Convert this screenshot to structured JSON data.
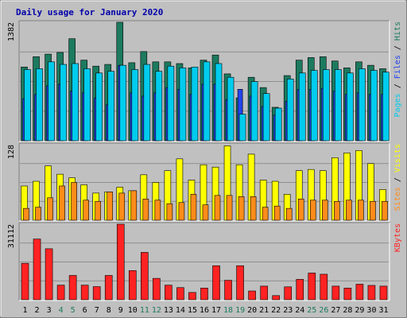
{
  "chart_data": {
    "type": "bar",
    "title": "Daily usage for January 2020",
    "categories": [
      "1",
      "2",
      "3",
      "4",
      "5",
      "6",
      "7",
      "8",
      "9",
      "10",
      "11",
      "12",
      "13",
      "14",
      "15",
      "16",
      "17",
      "18",
      "19",
      "20",
      "21",
      "22",
      "23",
      "24",
      "25",
      "26",
      "27",
      "28",
      "29",
      "30",
      "31"
    ],
    "weekend_days": [
      "4",
      "5",
      "11",
      "12",
      "18",
      "19",
      "25",
      "26"
    ],
    "panels": [
      {
        "max_label": "1382",
        "ylim": [
          0,
          1382
        ],
        "right_label": [
          "Pages",
          "Files",
          "Hits"
        ],
        "series": [
          {
            "name": "Hits",
            "color": "#1c7a5e",
            "values": [
              860,
              980,
              1010,
              1030,
              1190,
              940,
              870,
              890,
              1382,
              910,
              1040,
              920,
              920,
              900,
              850,
              940,
              1000,
              780,
              500,
              740,
              620,
              390,
              760,
              940,
              970,
              980,
              930,
              850,
              920,
              880,
              840
            ]
          },
          {
            "name": "Files",
            "color": "#2244ee",
            "values": [
              490,
              540,
              640,
              660,
              580,
              560,
              500,
              420,
              880,
              560,
              520,
              560,
              620,
              600,
              540,
              660,
              660,
              480,
              600,
              520,
              400,
              300,
              460,
              600,
              600,
              610,
              580,
              540,
              560,
              540,
              540
            ]
          },
          {
            "name": "Pages",
            "color": "#00ccee",
            "values": [
              830,
              840,
              920,
              890,
              900,
              840,
              790,
              810,
              880,
              830,
              890,
              810,
              870,
              850,
              860,
              920,
              900,
              740,
              310,
              690,
              550,
              380,
              720,
              790,
              820,
              830,
              830,
              790,
              840,
              820,
              800
            ]
          }
        ]
      },
      {
        "max_label": "128",
        "ylim": [
          0,
          128
        ],
        "right_label": [
          "Sites",
          "Visits"
        ],
        "series": [
          {
            "name": "Visits",
            "color": "#ffff00",
            "values": [
              58,
              66,
              92,
              78,
              72,
              60,
              46,
              48,
              56,
              50,
              77,
              64,
              84,
              104,
              68,
              94,
              90,
              126,
              94,
              112,
              68,
              66,
              44,
              84,
              86,
              84,
              106,
              114,
              118,
              96,
              52
            ]
          },
          {
            "name": "Sites",
            "color": "#ff8c1a",
            "values": [
              20,
              22,
              38,
              58,
              64,
              34,
              32,
              48,
              46,
              50,
              36,
              34,
              28,
              30,
              44,
              26,
              42,
              42,
              40,
              40,
              22,
              24,
              20,
              36,
              34,
              34,
              32,
              34,
              34,
              32,
              32
            ]
          }
        ]
      },
      {
        "max_label": "31112",
        "ylim": [
          0,
          31112
        ],
        "right_label": [
          "KBytes"
        ],
        "series": [
          {
            "name": "KBytes",
            "color": "#ff2222",
            "values": [
              15000,
              25000,
              21000,
              6000,
              10000,
              6000,
              5400,
              10000,
              31112,
              12000,
              19500,
              8800,
              6000,
              5000,
              3000,
              4800,
              14000,
              8000,
              14000,
              3600,
              5600,
              1700,
              5300,
              8400,
              11000,
              10500,
              5600,
              4800,
              6400,
              5900,
              5600
            ]
          }
        ]
      }
    ]
  }
}
